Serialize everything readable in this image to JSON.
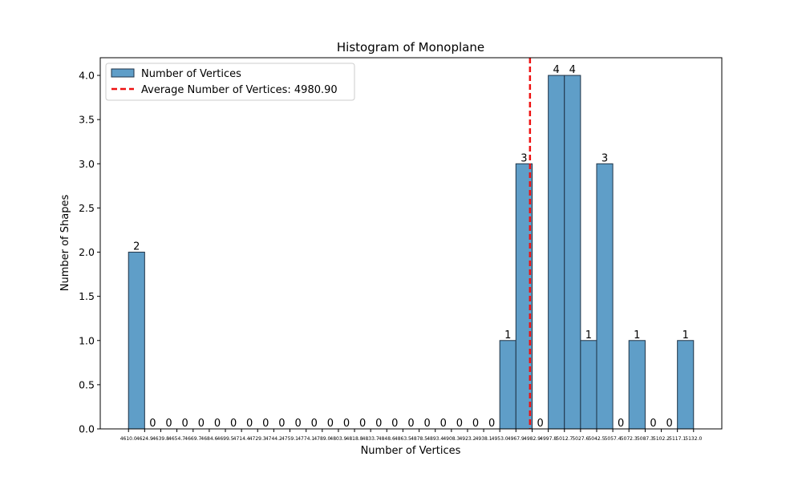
{
  "chart_data": {
    "type": "bar",
    "title": "Histogram of Monoplane",
    "xlabel": "Number of Vertices",
    "ylabel": "Number of Shapes",
    "ylim": [
      0,
      4.2
    ],
    "yticks": [
      0.0,
      0.5,
      1.0,
      1.5,
      2.0,
      2.5,
      3.0,
      3.5,
      4.0
    ],
    "ytick_labels": [
      "0.0",
      "0.5",
      "1.0",
      "1.5",
      "2.0",
      "2.5",
      "3.0",
      "3.5",
      "4.0"
    ],
    "bin_edges": [
      4610.0,
      4624.9,
      4639.8,
      4654.7,
      4669.7,
      4684.6,
      4699.5,
      4714.4,
      4729.3,
      4744.2,
      4759.1,
      4774.1,
      4789.0,
      4803.9,
      4818.8,
      4833.7,
      4848.6,
      4863.5,
      4878.5,
      4893.4,
      4908.3,
      4923.2,
      4938.1,
      4953.0,
      4967.9,
      4982.9,
      4997.8,
      5012.7,
      5027.6,
      5042.5,
      5057.4,
      5072.3,
      5087.3,
      5102.2,
      5117.1,
      5132.0
    ],
    "xtick_labels": [
      "4610.0",
      "4624.9",
      "4639.8",
      "4654.7",
      "4669.7",
      "4684.6",
      "4699.5",
      "4714.4",
      "4729.3",
      "4744.2",
      "4759.1",
      "4774.1",
      "4789.0",
      "4803.9",
      "4818.8",
      "4833.7",
      "4848.6",
      "4863.5",
      "4878.5",
      "4893.4",
      "4908.3",
      "4923.2",
      "4938.1",
      "4953.0",
      "4967.9",
      "4982.9",
      "4997.8",
      "5012.7",
      "5027.6",
      "5042.5",
      "5057.4",
      "5072.3",
      "5087.3",
      "5102.2",
      "5117.1",
      "5132.0"
    ],
    "values": [
      2,
      0,
      0,
      0,
      0,
      0,
      0,
      0,
      0,
      0,
      0,
      0,
      0,
      0,
      0,
      0,
      0,
      0,
      0,
      0,
      0,
      0,
      0,
      1,
      3,
      0,
      4,
      4,
      1,
      3,
      0,
      1,
      0,
      0,
      1
    ],
    "value_labels": [
      "2",
      "0",
      "0",
      "0",
      "0",
      "0",
      "0",
      "0",
      "0",
      "0",
      "0",
      "0",
      "0",
      "0",
      "0",
      "0",
      "0",
      "0",
      "0",
      "0",
      "0",
      "0",
      "0",
      "1",
      "3",
      "0",
      "4",
      "4",
      "1",
      "3",
      "0",
      "1",
      "0",
      "0",
      "1"
    ],
    "average": 4980.9,
    "legend": {
      "placement": "top-left",
      "entries": [
        {
          "label": "Number of Vertices",
          "kind": "bar"
        },
        {
          "label": "Average Number of Vertices: 4980.90",
          "kind": "dashed-line"
        }
      ]
    },
    "colors": {
      "bar": "#5f9ec8",
      "bar_edge": "#1f3347",
      "average_line": "#ee1111"
    }
  }
}
